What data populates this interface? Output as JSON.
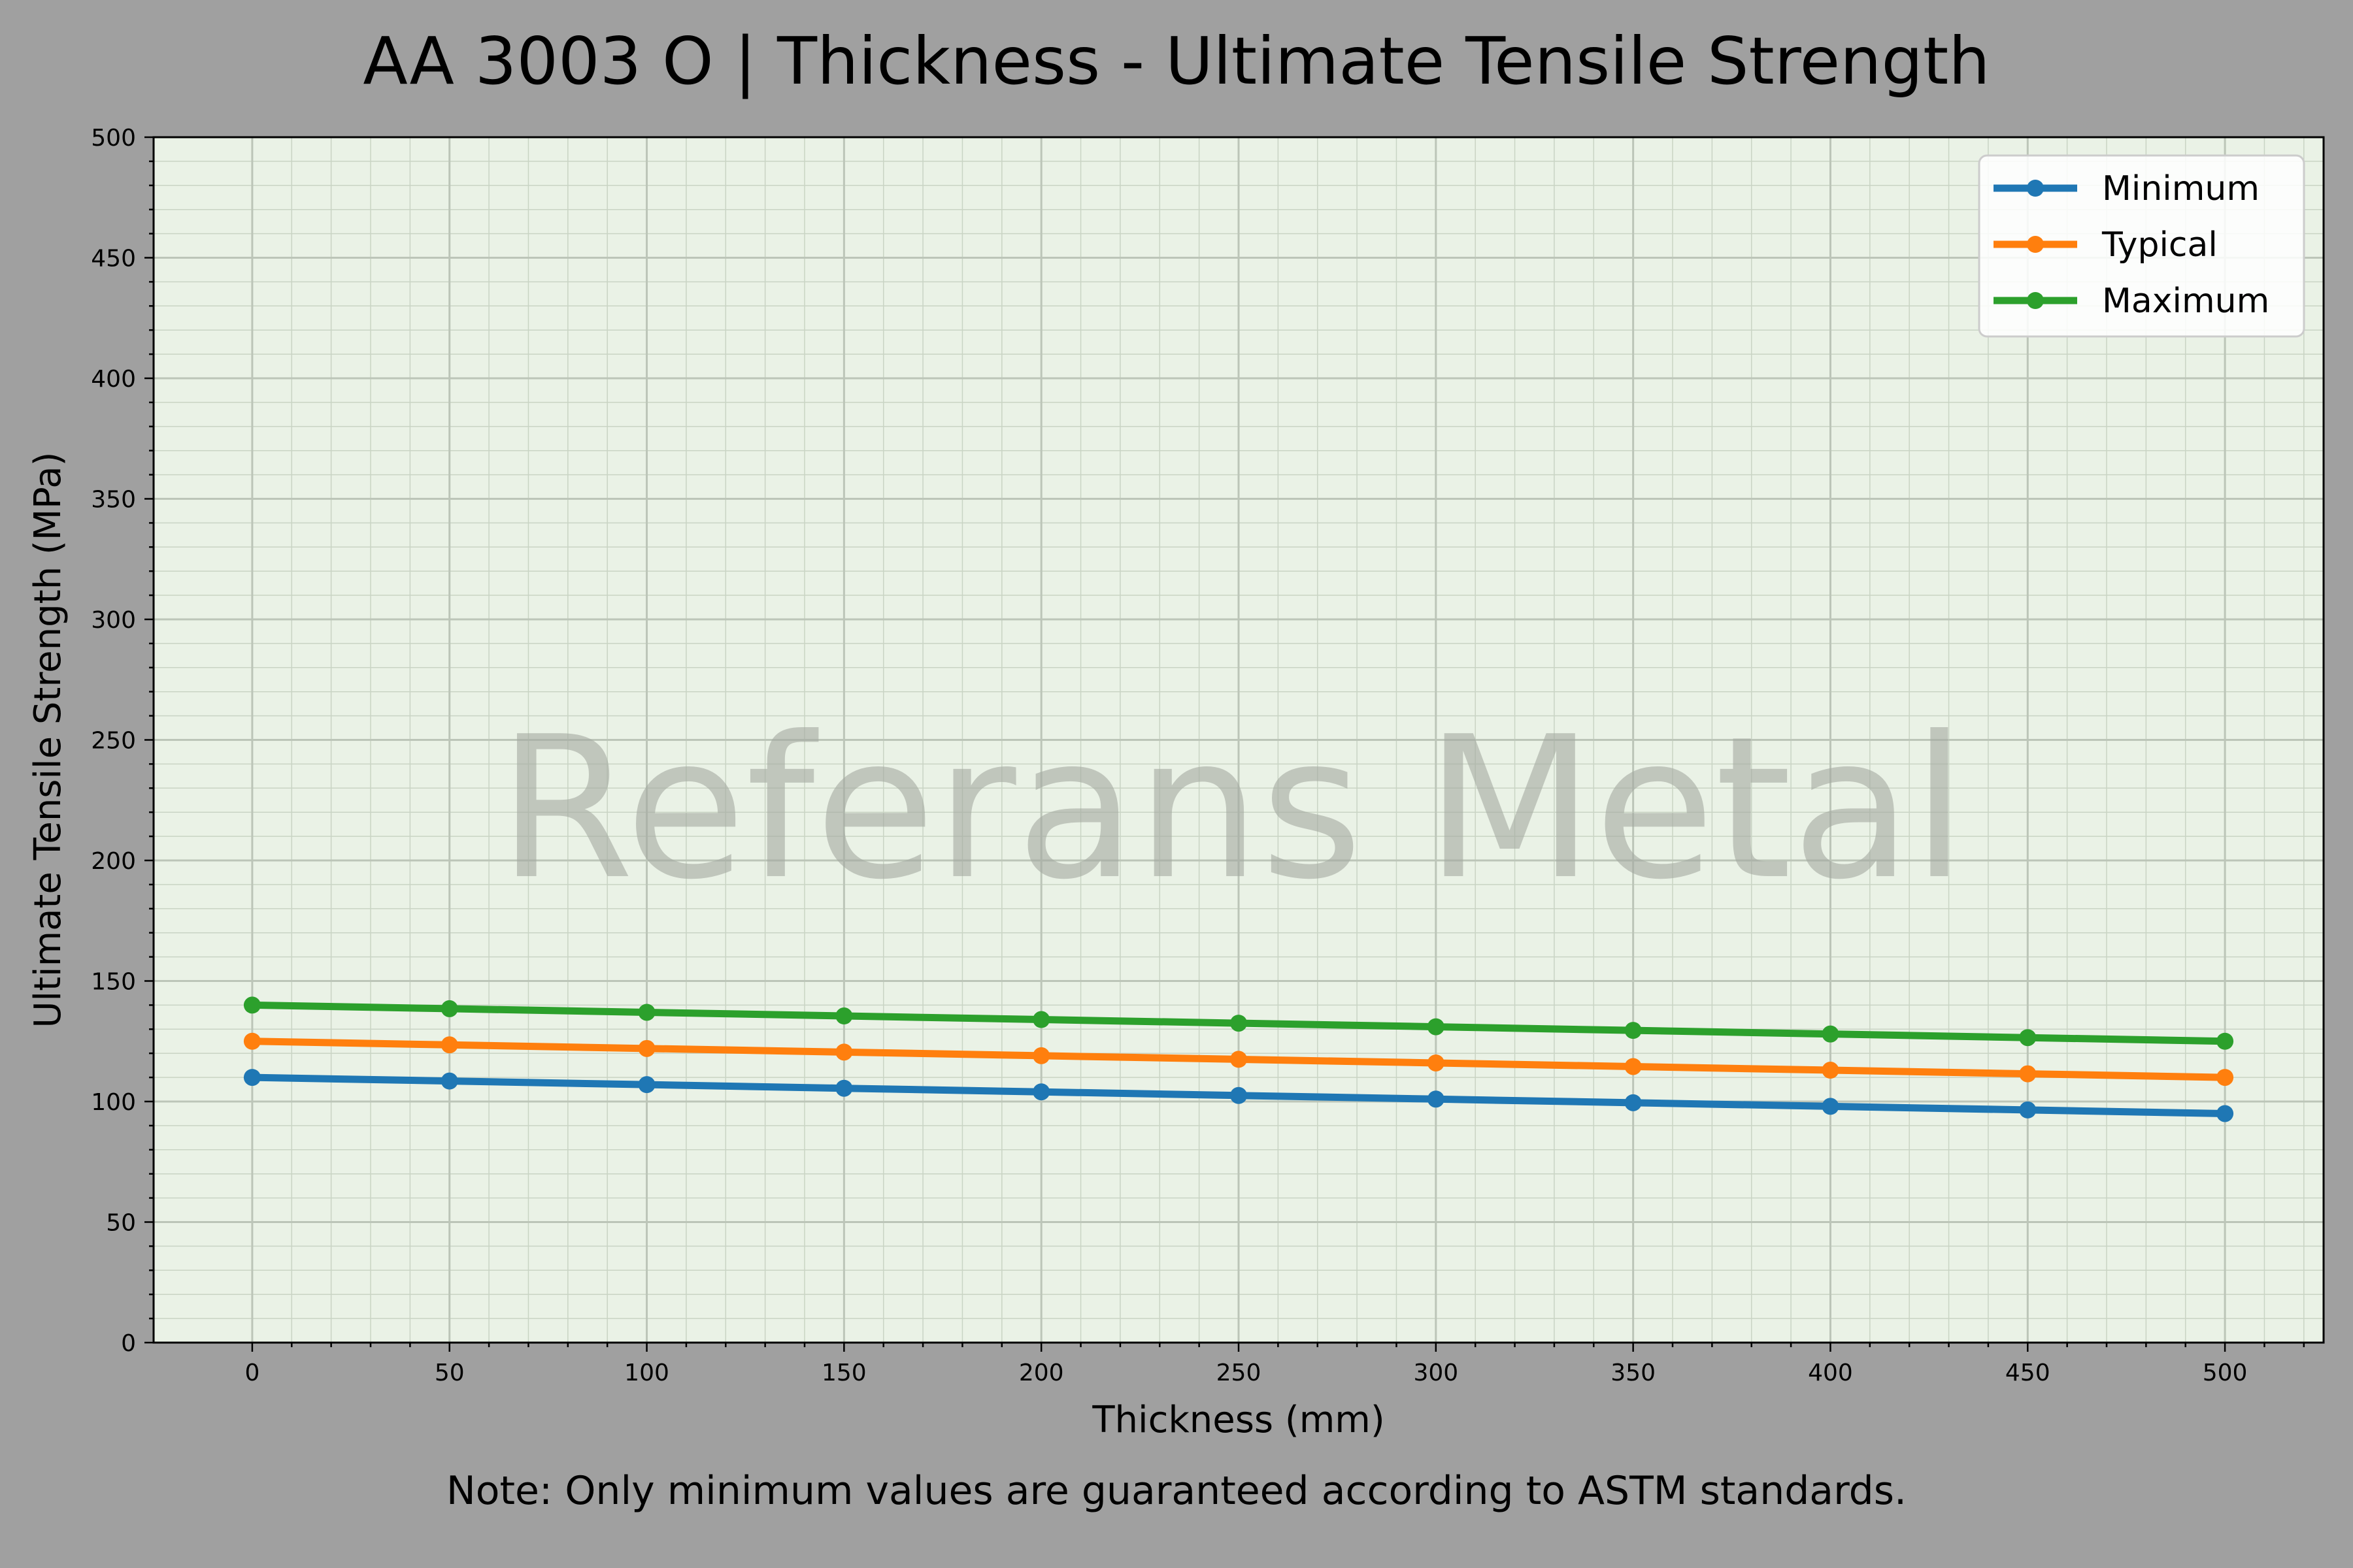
{
  "chart_data": {
    "type": "line",
    "title": "AA 3003 O | Thickness - Ultimate Tensile Strength",
    "xlabel": "Thickness (mm)",
    "ylabel": "Ultimate Tensile Strength (MPa)",
    "note": "Note: Only minimum values are guaranteed according to ASTM standards.",
    "watermark": "Referans Metal",
    "x": [
      0,
      50,
      100,
      150,
      200,
      250,
      300,
      350,
      400,
      450,
      500
    ],
    "xlim": [
      -25,
      525
    ],
    "ylim": [
      0,
      500
    ],
    "xticks": [
      0,
      50,
      100,
      150,
      200,
      250,
      300,
      350,
      400,
      450,
      500
    ],
    "yticks": [
      0,
      50,
      100,
      150,
      200,
      250,
      300,
      350,
      400,
      450,
      500
    ],
    "grid": true,
    "legend_position": "top-right",
    "plot_background": "#eaf2e6",
    "figure_background": "#a0a0a0",
    "series": [
      {
        "name": "Minimum",
        "color": "#1f77b4",
        "values": [
          110,
          108.5,
          107,
          105.5,
          104,
          102.5,
          101,
          99.5,
          98,
          96.5,
          95
        ]
      },
      {
        "name": "Typical",
        "color": "#ff7f0e",
        "values": [
          125,
          123.5,
          122,
          120.5,
          119,
          117.5,
          116,
          114.5,
          113,
          111.5,
          110
        ]
      },
      {
        "name": "Maximum",
        "color": "#2ca02c",
        "values": [
          140,
          138.5,
          137,
          135.5,
          134,
          132.5,
          131,
          129.5,
          128,
          126.5,
          125
        ]
      }
    ]
  }
}
